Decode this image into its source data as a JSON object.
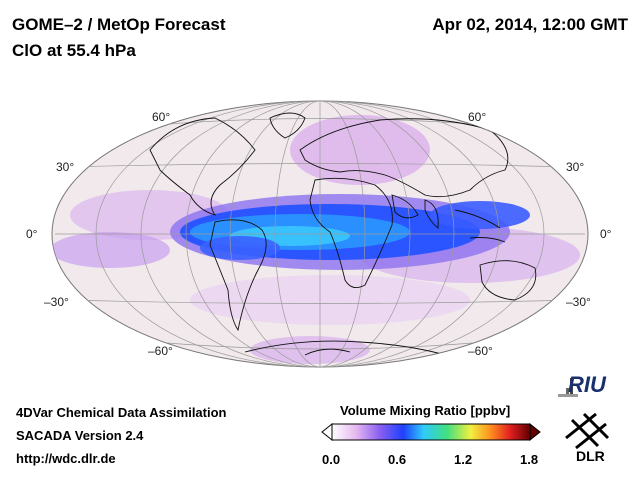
{
  "header": {
    "title": "GOME–2 / MetOp Forecast",
    "subtitle": "ClO at 55.4 hPa",
    "datetime": "Apr 02, 2014, 12:00 GMT"
  },
  "map": {
    "projection": "Hammer (elliptical)",
    "lat_labels": [
      "60°",
      "30°",
      "0°",
      "–30°",
      "–60°"
    ],
    "lat_labels_right": [
      "60°",
      "30°",
      "0°",
      "–30°",
      "–60°"
    ]
  },
  "footer": {
    "line1": "4DVar Chemical Data Assimilation",
    "line2": "SACADA Version 2.4",
    "line3": "http://wdc.dlr.de"
  },
  "colorbar": {
    "title": "Volume Mixing Ratio [ppbv]",
    "ticks": [
      "0.0",
      "0.6",
      "1.2",
      "1.8"
    ],
    "colors": [
      "#ffffff",
      "#e6b8f0",
      "#8a60f0",
      "#2040ff",
      "#30c8ff",
      "#40e080",
      "#f0f040",
      "#ff9020",
      "#e02020",
      "#600000"
    ]
  },
  "logos": {
    "riu": "RIU",
    "dlr": "DLR"
  }
}
